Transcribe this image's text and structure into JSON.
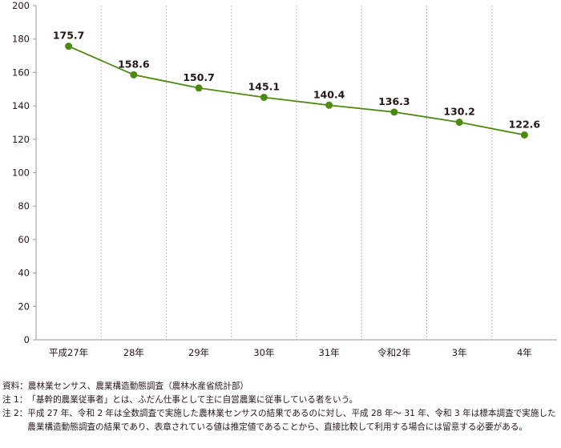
{
  "chart_data": {
    "type": "line",
    "categories": [
      "平成27年",
      "28年",
      "29年",
      "30年",
      "31年",
      "令和2年",
      "3年",
      "4年"
    ],
    "series": [
      {
        "values": [
          175.7,
          158.6,
          150.7,
          145.1,
          140.4,
          136.3,
          130.2,
          122.6
        ],
        "labels": [
          "175.7",
          "158.6",
          "150.7",
          "145.1",
          "140.4",
          "136.3",
          "130.2",
          "122.6"
        ],
        "color": "#4f8a10"
      }
    ],
    "yticks": [
      "0",
      "20",
      "40",
      "60",
      "80",
      "100",
      "120",
      "140",
      "160",
      "180",
      "200"
    ],
    "ylim": [
      0,
      200
    ],
    "ytick_step": 20,
    "grid": "vertical-dotted",
    "axis_color": "#9a9a9a",
    "grid_color": "#bdbdbd",
    "text_color": "#231815",
    "marker_color": "#4f8a10"
  },
  "notes": [
    {
      "label": "資料：",
      "text": "農林業センサス、農業構造動態調査（農林水産省統計部）"
    },
    {
      "label": "注 1：",
      "text": "「基幹的農業従事者」とは、ふだん仕事として主に自営農業に従事している者をいう。"
    },
    {
      "label": "注 2：",
      "text": "平成 27 年、令和 2 年は全数調査で実施した農林業センサスの結果であるのに対し、平成 28 年～ 31 年、令和 3 年は標本調査で実施した農業構造動態調査の結果であり、表章されている値は推定値であることから、直接比較して利用する場合には留意する必要がある。"
    }
  ]
}
